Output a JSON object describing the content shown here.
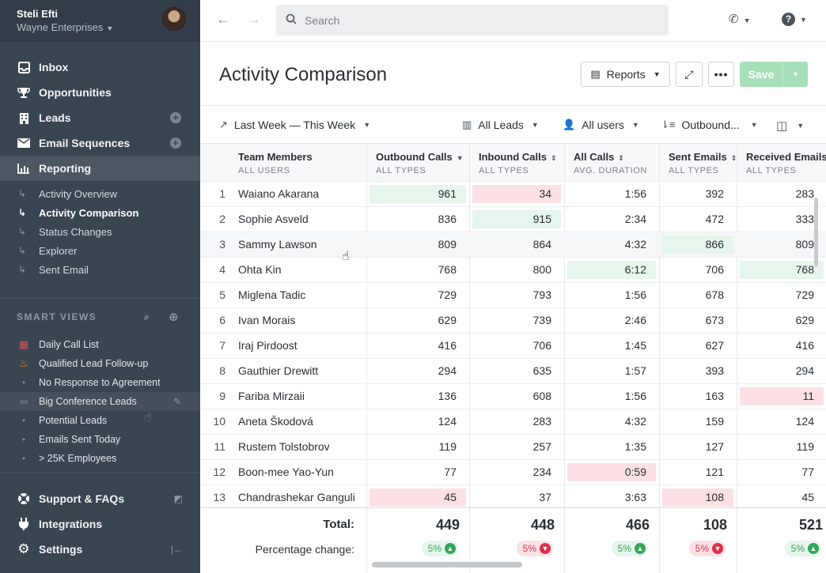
{
  "profile": {
    "name": "Steli Efti",
    "company": "Wayne Enterprises"
  },
  "nav": [
    {
      "label": "Inbox",
      "icon": "inbox-icon"
    },
    {
      "label": "Opportunities",
      "icon": "trophy-icon"
    },
    {
      "label": "Leads",
      "icon": "building-icon"
    },
    {
      "label": "Email Sequences",
      "icon": "envelope-icon"
    },
    {
      "label": "Reporting",
      "icon": "bar-chart-icon"
    }
  ],
  "reporting_sub": [
    "Activity Overview",
    "Activity Comparison",
    "Status Changes",
    "Explorer",
    "Sent Email"
  ],
  "smart_views": {
    "heading": "SMART VIEWS",
    "items": [
      {
        "label": "Daily Call List",
        "icon": "calendar-icon"
      },
      {
        "label": "Qualified Lead Follow-up",
        "icon": "fire-icon"
      },
      {
        "label": "No Response to Agreement",
        "icon": "dot-icon"
      },
      {
        "label": "Big Conference Leads",
        "icon": "drag-handle-icon"
      },
      {
        "label": "Potential Leads",
        "icon": "dot-icon"
      },
      {
        "label": "Emails Sent Today",
        "icon": "dot-icon"
      },
      {
        "label": "> 25K Employees",
        "icon": "dot-icon"
      }
    ]
  },
  "bottom_nav": [
    {
      "label": "Support & FAQs",
      "icon": "lifebuoy-icon"
    },
    {
      "label": "Integrations",
      "icon": "plug-icon"
    },
    {
      "label": "Settings",
      "icon": "gear-icon"
    }
  ],
  "search": {
    "placeholder": "Search"
  },
  "page": {
    "title": "Activity Comparison",
    "reports_label": "Reports",
    "save_label": "Save"
  },
  "filters": {
    "date_range": "Last Week — This Week",
    "leads": "All Leads",
    "users": "All users",
    "sort": "Outbound..."
  },
  "table": {
    "columns": [
      {
        "label": "Team Members",
        "sub": "ALL USERS"
      },
      {
        "label": "Outbound Calls",
        "sub": "ALL TYPES"
      },
      {
        "label": "Inbound Calls",
        "sub": "ALL TYPES"
      },
      {
        "label": "All Calls",
        "sub": "AVG. DURATION"
      },
      {
        "label": "Sent Emails",
        "sub": "ALL TYPES"
      },
      {
        "label": "Received Emails",
        "sub": "ALL TYPES"
      }
    ],
    "rows": [
      {
        "n": "1",
        "name": "Waiano Akarana",
        "out": "961",
        "in": "34",
        "dur": "1:56",
        "sent": "392",
        "recv": "283"
      },
      {
        "n": "2",
        "name": "Sophie Asveld",
        "out": "836",
        "in": "915",
        "dur": "2:34",
        "sent": "472",
        "recv": "333"
      },
      {
        "n": "3",
        "name": "Sammy Lawson",
        "out": "809",
        "in": "864",
        "dur": "4:32",
        "sent": "866",
        "recv": "809"
      },
      {
        "n": "4",
        "name": "Ohta Kin",
        "out": "768",
        "in": "800",
        "dur": "6:12",
        "sent": "706",
        "recv": "768"
      },
      {
        "n": "5",
        "name": "Miglena Tadic",
        "out": "729",
        "in": "793",
        "dur": "1:56",
        "sent": "678",
        "recv": "729"
      },
      {
        "n": "6",
        "name": "Ivan Morais",
        "out": "629",
        "in": "739",
        "dur": "2:46",
        "sent": "673",
        "recv": "629"
      },
      {
        "n": "7",
        "name": "Iraj Pirdoost",
        "out": "416",
        "in": "706",
        "dur": "1:45",
        "sent": "627",
        "recv": "416"
      },
      {
        "n": "8",
        "name": "Gauthier Drewitt",
        "out": "294",
        "in": "635",
        "dur": "1:57",
        "sent": "393",
        "recv": "294"
      },
      {
        "n": "9",
        "name": "Fariba Mirzaii",
        "out": "136",
        "in": "608",
        "dur": "1:56",
        "sent": "163",
        "recv": "11"
      },
      {
        "n": "10",
        "name": "Aneta Škodová",
        "out": "124",
        "in": "283",
        "dur": "4:32",
        "sent": "159",
        "recv": "124"
      },
      {
        "n": "11",
        "name": "Rustem Tolstobrov",
        "out": "119",
        "in": "257",
        "dur": "1:35",
        "sent": "127",
        "recv": "119"
      },
      {
        "n": "12",
        "name": "Boon-mee Yao-Yun",
        "out": "77",
        "in": "234",
        "dur": "0:59",
        "sent": "121",
        "recv": "77"
      },
      {
        "n": "13",
        "name": "Chandrashekar Ganguli",
        "out": "45",
        "in": "37",
        "dur": "3:63",
        "sent": "108",
        "recv": "45"
      }
    ]
  },
  "totals": {
    "label": "Total:",
    "pct_label": "Percentage change:",
    "values": [
      "449",
      "448",
      "466",
      "108",
      "521"
    ],
    "pct": [
      {
        "value": "5%",
        "dir": "up"
      },
      {
        "value": "5%",
        "dir": "down"
      },
      {
        "value": "5%",
        "dir": "up"
      },
      {
        "value": "5%",
        "dir": "down"
      },
      {
        "value": "5%",
        "dir": "up"
      }
    ]
  },
  "colors": {
    "sidebar": "#3a4552",
    "save": "#a7dfb8",
    "green_hl": "#e6f6ec",
    "red_hl": "#fbe1e4"
  }
}
